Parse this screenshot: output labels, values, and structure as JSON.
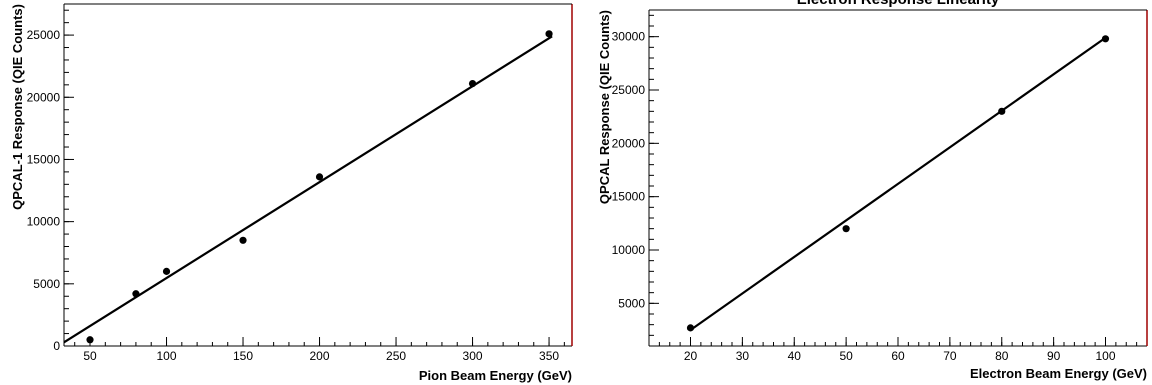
{
  "chart_data": [
    {
      "type": "scatter",
      "title": "",
      "xlabel": "Pion Beam Energy (GeV)",
      "ylabel": "QPCAL-1 Response (QIE Counts)",
      "xlim": [
        33,
        365
      ],
      "ylim": [
        0,
        27500
      ],
      "x_ticks": [
        50,
        100,
        150,
        200,
        250,
        300,
        350
      ],
      "y_ticks": [
        0,
        5000,
        10000,
        15000,
        20000,
        25000
      ],
      "grid": false,
      "x_minor_step": 10,
      "y_minor_step": 1000,
      "series": [
        {
          "points": [
            {
              "x": 50,
              "y": 500
            },
            {
              "x": 80,
              "y": 4200
            },
            {
              "x": 100,
              "y": 6000
            },
            {
              "x": 150,
              "y": 8500
            },
            {
              "x": 200,
              "y": 13600
            },
            {
              "x": 300,
              "y": 21100
            },
            {
              "x": 350,
              "y": 25100
            }
          ]
        }
      ],
      "fit_line": {
        "x": [
          33,
          352
        ],
        "y": [
          300,
          24900
        ]
      }
    },
    {
      "type": "scatter",
      "title": "Electron Response Linearity",
      "xlabel": "Electron Beam Energy (GeV)",
      "ylabel": "QPCAL Response (QIE Counts)",
      "xlim": [
        12,
        108
      ],
      "ylim": [
        1000,
        32500
      ],
      "x_ticks": [
        20,
        30,
        40,
        50,
        60,
        70,
        80,
        90,
        100
      ],
      "y_ticks": [
        5000,
        10000,
        15000,
        20000,
        25000,
        30000
      ],
      "grid": false,
      "x_minor_step": 2,
      "y_minor_step": 1000,
      "series": [
        {
          "points": [
            {
              "x": 20,
              "y": 2700
            },
            {
              "x": 50,
              "y": 12000
            },
            {
              "x": 80,
              "y": 23000
            },
            {
              "x": 100,
              "y": 29800
            }
          ]
        }
      ],
      "fit_line": {
        "x": [
          20,
          100
        ],
        "y": [
          2500,
          29900
        ]
      }
    }
  ]
}
